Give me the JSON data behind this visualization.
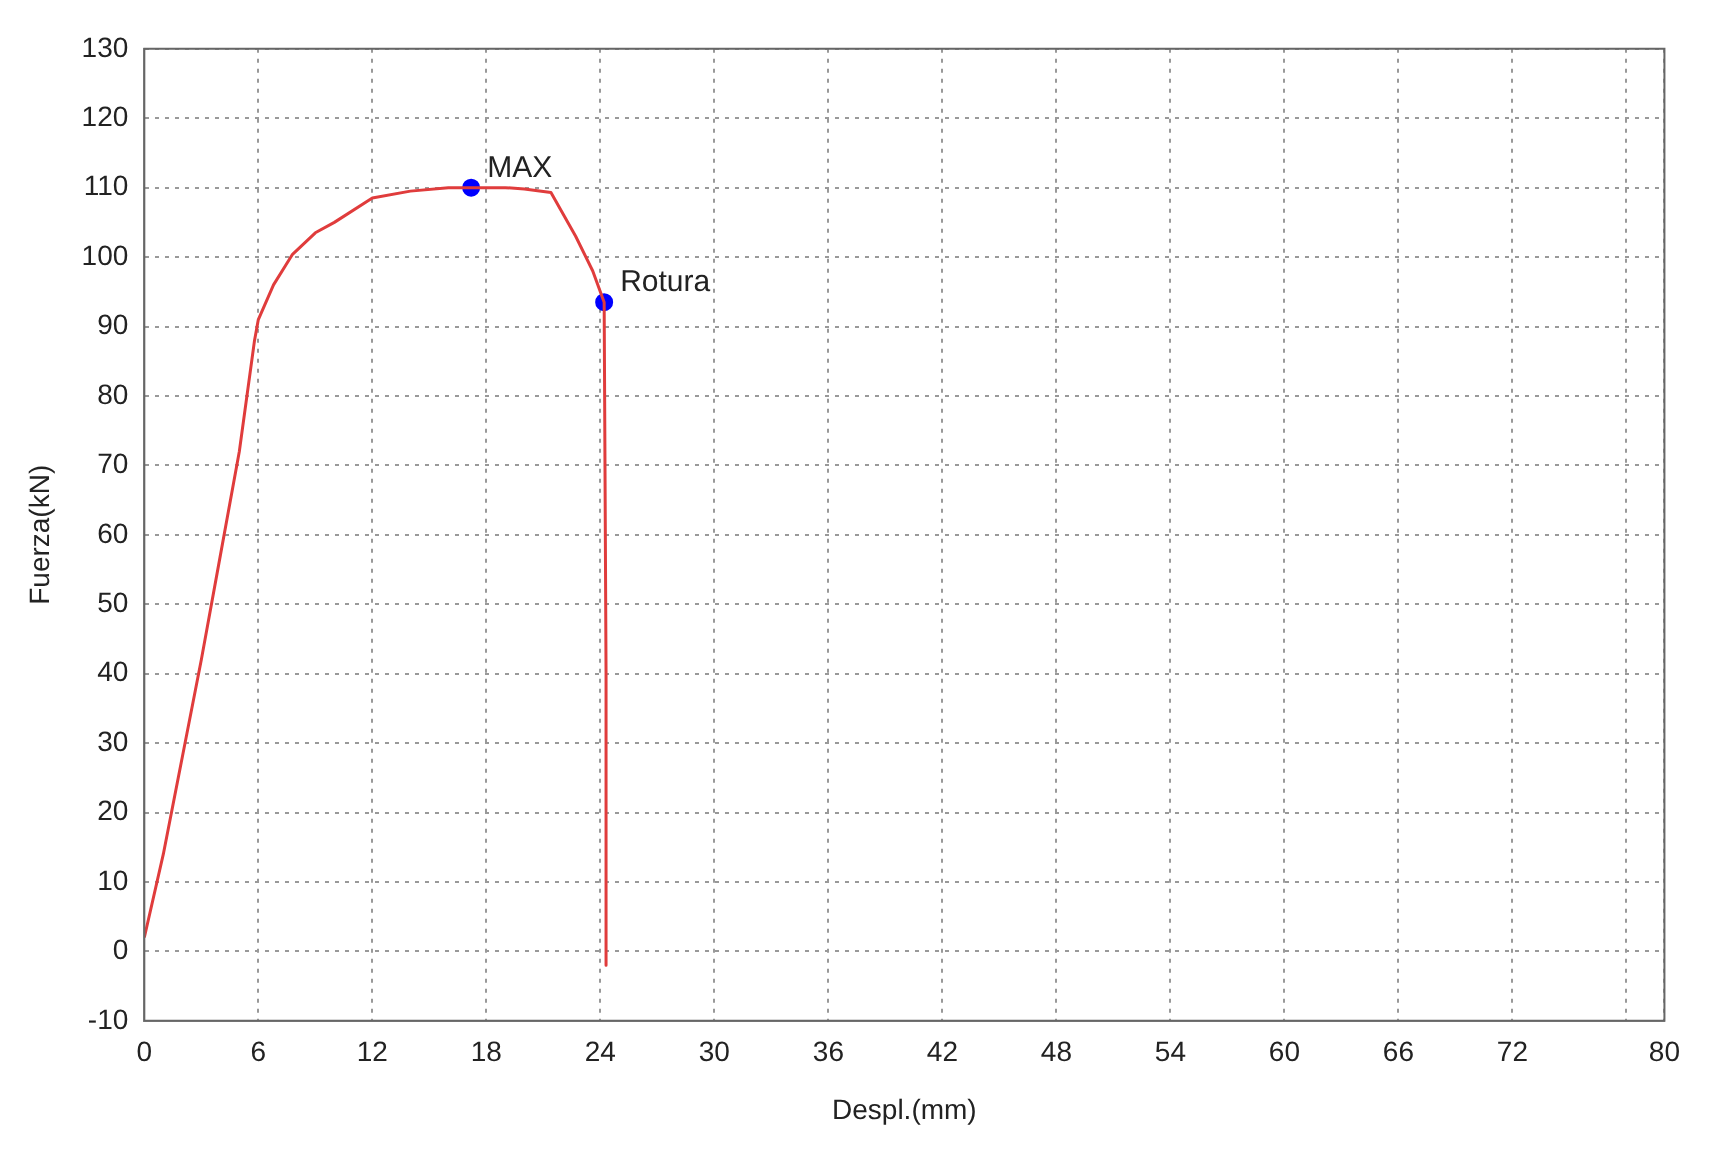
{
  "chart_data": {
    "type": "line",
    "xlabel": "Despl.(mm)",
    "ylabel": "Fuerza(kN)",
    "xlim": [
      0,
      80
    ],
    "ylim": [
      -10,
      130
    ],
    "xticks": [
      0,
      6,
      12,
      18,
      24,
      30,
      36,
      42,
      48,
      54,
      60,
      66,
      72,
      {
        "value": 78,
        "label": null
      },
      80
    ],
    "yticks": [
      -10,
      0,
      10,
      20,
      30,
      40,
      50,
      60,
      70,
      80,
      90,
      100,
      110,
      120,
      130
    ],
    "grid": true,
    "legend": false,
    "series": [
      {
        "type": "line",
        "color": "#e03c3c",
        "marker": "none",
        "line_style": "solid",
        "x": [
          0,
          1,
          2,
          3,
          4,
          5,
          5.8,
          6,
          6.8,
          7.8,
          9,
          10,
          12,
          14,
          16,
          17.2,
          19,
          20,
          21.4,
          22.7,
          23.6,
          24.2,
          24.3,
          24.3
        ],
        "values": [
          2,
          14,
          28,
          42,
          57,
          72,
          88,
          91,
          96,
          100.4,
          103.5,
          105,
          108.5,
          109.5,
          110,
          110,
          110,
          109.8,
          109.3,
          103,
          98,
          93.5,
          40,
          -2
        ]
      },
      {
        "type": "scatter",
        "color": "#0000ff",
        "marker": "circle",
        "x": [
          17.2,
          24.2
        ],
        "values": [
          110,
          93.5
        ]
      }
    ],
    "annotations": [
      {
        "text": "MAX",
        "x": 17.2,
        "y": 110
      },
      {
        "text": "Rotura",
        "x": 24.2,
        "y": 93.5
      }
    ]
  }
}
